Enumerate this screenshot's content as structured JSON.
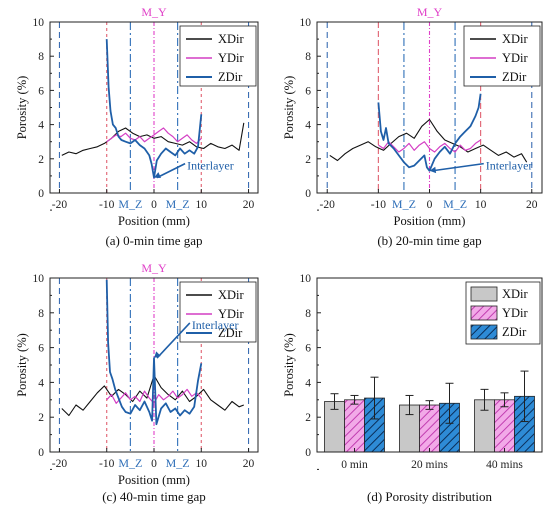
{
  "colors": {
    "xdir": "#111111",
    "ydir": "#d43fc4",
    "zdir": "#1f5fa8",
    "my_line": "#e040c8",
    "mz_line": "#2f6fb8",
    "edge_line": "#3b6db3",
    "ten_line": "#e06070",
    "bar_x": "#c8c8c8",
    "bar_y": "#f2a9e8",
    "bar_z": "#2e8bd6"
  },
  "panels": [
    {
      "caption": "(a) 0-min time gap",
      "xlabel": "Position (mm)",
      "ylabel": "Porosity (%)",
      "xlim": [
        -22,
        22
      ],
      "ylim": [
        0,
        10
      ],
      "xticks": [
        "-20",
        "-10",
        "0",
        "10",
        "20"
      ],
      "yticks": [
        "0",
        "2",
        "4",
        "6",
        "8",
        "10"
      ],
      "top_marker": "M_Y",
      "markers": [
        "M_Z",
        "M_Z"
      ],
      "marker_positions": [
        -5,
        5
      ],
      "legend": [
        "XDir",
        "YDir",
        "ZDir"
      ],
      "annotation": "Interlayer",
      "annotation_point": [
        0,
        0.9
      ],
      "annotation_text_at": [
        7,
        1.6
      ],
      "vlines": [
        {
          "x": -20,
          "color": "edge_line",
          "dash": "6,4"
        },
        {
          "x": 20,
          "color": "edge_line",
          "dash": "6,4"
        },
        {
          "x": -10,
          "color": "ten_line",
          "dash": "3,3"
        },
        {
          "x": 10,
          "color": "ten_line",
          "dash": "3,3"
        },
        {
          "x": -5,
          "color": "mz_line",
          "dash": "8,3,2,3"
        },
        {
          "x": 5,
          "color": "mz_line",
          "dash": "8,3,2,3"
        },
        {
          "x": 0,
          "color": "my_line",
          "dash": "4,2,1,2"
        }
      ],
      "chart_data": {
        "type": "line",
        "series": [
          {
            "name": "XDir",
            "x": [
              -19.5,
              -18,
              -16.5,
              -15,
              -13.5,
              -12,
              -10.5,
              -9,
              -7.5,
              -6,
              -4.5,
              -3,
              -1.5,
              0,
              1.5,
              3,
              4.5,
              6,
              7.5,
              9,
              10.5,
              12,
              13.5,
              15,
              16.5,
              18,
              19
            ],
            "y": [
              2.2,
              2.4,
              2.3,
              2.5,
              2.6,
              2.7,
              2.9,
              3.2,
              3.6,
              3.8,
              3.5,
              3.3,
              3.4,
              3.2,
              3.3,
              3.0,
              2.9,
              2.8,
              3.0,
              2.7,
              2.6,
              2.9,
              2.7,
              2.6,
              2.8,
              2.5,
              4.1
            ]
          },
          {
            "name": "YDir",
            "x": [
              -10,
              -9,
              -8,
              -7,
              -6,
              -5,
              -4,
              -3,
              -2,
              -1,
              0,
              1,
              2,
              3,
              4,
              5,
              6,
              7,
              8,
              9,
              10
            ],
            "y": [
              3.0,
              3.2,
              3.4,
              3.3,
              3.5,
              3.2,
              3.1,
              3.3,
              3.0,
              3.2,
              3.4,
              3.6,
              3.8,
              3.5,
              3.3,
              3.0,
              3.2,
              3.4,
              3.1,
              2.9,
              3.2
            ]
          },
          {
            "name": "ZDir",
            "x": [
              -10,
              -9.6,
              -9.2,
              -8.7,
              -8.1,
              -7.5,
              -6.9,
              -6,
              -5,
              -4,
              -3,
              -2,
              -1,
              -0.5,
              0,
              0.6,
              1.5,
              2.5,
              3.5,
              4.5,
              5.5,
              6.5,
              7.5,
              8.5,
              9.3,
              10
            ],
            "y": [
              9.0,
              6.2,
              4.8,
              4.0,
              3.8,
              3.3,
              3.1,
              3.0,
              2.9,
              3.1,
              2.8,
              2.6,
              2.2,
              1.7,
              0.9,
              1.9,
              2.3,
              2.6,
              2.4,
              2.2,
              2.6,
              2.3,
              2.5,
              2.3,
              2.7,
              4.6
            ]
          }
        ]
      }
    },
    {
      "caption": "(b) 20-min time gap",
      "xlabel": "Position (mm)",
      "ylabel": "Porosity (%)",
      "xlim": [
        -22,
        22
      ],
      "ylim": [
        0,
        10
      ],
      "xticks": [
        "-20",
        "-10",
        "0",
        "10",
        "20"
      ],
      "yticks": [
        "0",
        "2",
        "4",
        "6",
        "8",
        "10"
      ],
      "top_marker": "M_Y",
      "markers": [
        "M_Z",
        "M_Z"
      ],
      "marker_positions": [
        -5,
        5
      ],
      "legend": [
        "XDir",
        "YDir",
        "ZDir"
      ],
      "annotation": "Interlayer",
      "annotation_point": [
        0,
        1.3
      ],
      "annotation_text_at": [
        11,
        1.6
      ],
      "vlines": [
        {
          "x": -20,
          "color": "edge_line",
          "dash": "6,4"
        },
        {
          "x": 20,
          "color": "edge_line",
          "dash": "6,4"
        },
        {
          "x": -10,
          "color": "ten_line",
          "dash": "6,3"
        },
        {
          "x": 10,
          "color": "ten_line",
          "dash": "6,3"
        },
        {
          "x": -5,
          "color": "mz_line",
          "dash": "8,3,2,3"
        },
        {
          "x": 5,
          "color": "mz_line",
          "dash": "8,3,2,3"
        },
        {
          "x": 0,
          "color": "my_line",
          "dash": "4,2,1,2"
        }
      ],
      "chart_data": {
        "type": "line",
        "series": [
          {
            "name": "XDir",
            "x": [
              -19.5,
              -18,
              -16.5,
              -15,
              -13.5,
              -12,
              -10.5,
              -9,
              -7.5,
              -6,
              -4.5,
              -3,
              -1.5,
              0,
              1.5,
              3,
              4.5,
              6,
              7.5,
              9,
              10.5,
              12,
              13.5,
              15,
              16.5,
              18,
              19
            ],
            "y": [
              2.2,
              1.9,
              2.3,
              2.6,
              2.8,
              3.0,
              2.7,
              2.5,
              2.9,
              3.3,
              3.5,
              3.2,
              3.9,
              4.3,
              3.6,
              3.1,
              2.9,
              2.7,
              2.4,
              2.6,
              2.8,
              2.5,
              2.2,
              2.4,
              2.1,
              2.3,
              1.8
            ]
          },
          {
            "name": "YDir",
            "x": [
              -10,
              -9,
              -8,
              -7,
              -6,
              -5,
              -4,
              -3,
              -2,
              -1,
              0,
              1,
              2,
              3,
              4,
              5,
              6,
              7,
              8,
              9,
              10
            ],
            "y": [
              2.8,
              2.6,
              3.0,
              2.7,
              2.4,
              2.6,
              2.9,
              2.5,
              2.8,
              3.0,
              2.6,
              2.4,
              2.7,
              2.9,
              2.6,
              2.4,
              2.8,
              2.5,
              2.6,
              2.9,
              3.1
            ]
          },
          {
            "name": "ZDir",
            "x": [
              -10,
              -9.5,
              -9,
              -8.5,
              -8,
              -7,
              -6,
              -5,
              -4,
              -3,
              -2,
              -1,
              -0.5,
              0,
              1,
              2,
              3,
              4,
              5,
              6,
              7,
              8,
              9,
              9.6,
              10
            ],
            "y": [
              5.3,
              3.6,
              3.1,
              3.8,
              2.9,
              2.6,
              2.2,
              1.8,
              1.5,
              1.6,
              1.9,
              2.2,
              1.5,
              1.3,
              2.0,
              2.4,
              2.7,
              2.3,
              2.9,
              3.3,
              3.6,
              3.9,
              4.5,
              5.0,
              5.8
            ]
          }
        ]
      }
    },
    {
      "caption": "(c) 40-min time gap",
      "xlabel": "Position (mm)",
      "ylabel": "Porosity (%)",
      "xlim": [
        -22,
        22
      ],
      "ylim": [
        0,
        10
      ],
      "xticks": [
        "-20",
        "-10",
        "0",
        "10",
        "20"
      ],
      "yticks": [
        "0",
        "2",
        "4",
        "6",
        "8",
        "10"
      ],
      "top_marker": "M_Y",
      "markers": [
        "M_Z",
        "M_Z"
      ],
      "marker_positions": [
        -5,
        5
      ],
      "legend": [
        "XDir",
        "YDir",
        "ZDir"
      ],
      "annotation": "Interlayer",
      "annotation_point": [
        0,
        5.4
      ],
      "annotation_text_at": [
        8,
        7.3
      ],
      "vlines": [
        {
          "x": -20,
          "color": "edge_line",
          "dash": "6,4"
        },
        {
          "x": 20,
          "color": "edge_line",
          "dash": "6,4"
        },
        {
          "x": -10,
          "color": "ten_line",
          "dash": "3,3"
        },
        {
          "x": 10,
          "color": "ten_line",
          "dash": "3,3"
        },
        {
          "x": -5,
          "color": "mz_line",
          "dash": "8,3,2,3"
        },
        {
          "x": 5,
          "color": "mz_line",
          "dash": "8,3,2,3"
        },
        {
          "x": 0,
          "color": "my_line",
          "dash": "4,2,1,2"
        }
      ],
      "chart_data": {
        "type": "line",
        "series": [
          {
            "name": "XDir",
            "x": [
              -19.5,
              -18,
              -16.5,
              -15,
              -13.5,
              -12,
              -10.5,
              -9,
              -7.5,
              -6,
              -4.5,
              -3,
              -1.5,
              0,
              1.5,
              3,
              4.5,
              6,
              7.5,
              9,
              10.5,
              12,
              13.5,
              15,
              16.5,
              18,
              19
            ],
            "y": [
              2.5,
              2.1,
              2.7,
              2.4,
              2.9,
              3.4,
              3.8,
              3.2,
              3.6,
              3.3,
              2.9,
              3.5,
              3.1,
              4.4,
              3.7,
              3.3,
              3.0,
              3.5,
              2.9,
              3.2,
              3.6,
              3.0,
              2.7,
              2.4,
              2.9,
              2.6,
              2.7
            ]
          },
          {
            "name": "YDir",
            "x": [
              -10,
              -9,
              -8,
              -7,
              -6,
              -5,
              -4,
              -3,
              -2,
              -1,
              0,
              1,
              2,
              3,
              4,
              5,
              6,
              7,
              8,
              9,
              10
            ],
            "y": [
              3.0,
              3.3,
              2.8,
              3.1,
              3.4,
              3.0,
              3.2,
              2.9,
              3.5,
              3.1,
              2.8,
              3.3,
              3.0,
              3.2,
              3.5,
              3.1,
              3.3,
              3.6,
              3.2,
              3.4,
              3.1
            ]
          },
          {
            "name": "ZDir",
            "x": [
              -10,
              -9.7,
              -9.3,
              -8.8,
              -8.2,
              -7.5,
              -6.8,
              -6,
              -5,
              -4,
              -3,
              -2,
              -1,
              -0.4,
              0,
              0.5,
              1.5,
              2.5,
              3.5,
              4.5,
              5.5,
              6.5,
              7.5,
              8.5,
              9.3,
              10
            ],
            "y": [
              9.9,
              6.3,
              4.6,
              4.2,
              3.6,
              3.1,
              2.6,
              2.3,
              2.2,
              2.7,
              2.4,
              2.9,
              2.3,
              1.8,
              5.4,
              1.6,
              2.5,
              2.8,
              2.3,
              2.5,
              2.1,
              2.4,
              2.2,
              2.6,
              4.1,
              5.1
            ]
          }
        ]
      }
    },
    {
      "caption": "(d) Porosity distribution",
      "ylabel": "Porosity (%)",
      "xticks": [
        "0 min",
        "20 mins",
        "40 mins"
      ],
      "yticks": [
        "0",
        "2",
        "4",
        "6",
        "8",
        "10"
      ],
      "legend": [
        "XDir",
        "YDir",
        "ZDir"
      ],
      "chart_data": {
        "type": "bar",
        "categories": [
          "0 min",
          "20 mins",
          "40 mins"
        ],
        "ylim": [
          0,
          10
        ],
        "series": [
          {
            "name": "XDir",
            "values": [
              2.9,
              2.7,
              3.0
            ],
            "errors": [
              0.45,
              0.55,
              0.6
            ]
          },
          {
            "name": "YDir",
            "values": [
              3.0,
              2.7,
              3.0
            ],
            "errors": [
              0.25,
              0.25,
              0.4
            ]
          },
          {
            "name": "ZDir",
            "values": [
              3.1,
              2.8,
              3.2
            ],
            "errors": [
              1.2,
              1.15,
              1.45
            ]
          }
        ]
      }
    }
  ]
}
